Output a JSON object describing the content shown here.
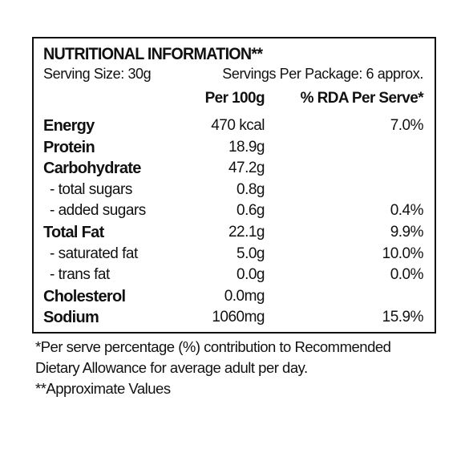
{
  "panel": {
    "title": "NUTRITIONAL INFORMATION**",
    "serving_size": "Serving Size: 30g",
    "servings_per_package": "Servings Per Package: 6 approx.",
    "headers": {
      "per_100g": "Per 100g",
      "rda_per_serve": "% RDA Per Serve*"
    },
    "rows": [
      {
        "name": "Energy",
        "per_100g": "470 kcal",
        "rda": "7.0%",
        "level": "main"
      },
      {
        "name": "Protein",
        "per_100g": "18.9g",
        "rda": "",
        "level": "main"
      },
      {
        "name": "Carbohydrate",
        "per_100g": "47.2g",
        "rda": "",
        "level": "main"
      },
      {
        "name": "- total sugars",
        "per_100g": "0.8g",
        "rda": "",
        "level": "sub"
      },
      {
        "name": "- added sugars",
        "per_100g": "0.6g",
        "rda": "0.4%",
        "level": "sub"
      },
      {
        "name": "Total Fat",
        "per_100g": "22.1g",
        "rda": "9.9%",
        "level": "main"
      },
      {
        "name": "- saturated fat",
        "per_100g": "5.0g",
        "rda": "10.0%",
        "level": "sub"
      },
      {
        "name": "- trans fat",
        "per_100g": "0.0g",
        "rda": "0.0%",
        "level": "sub"
      },
      {
        "name": "Cholesterol",
        "per_100g": "0.0mg",
        "rda": "",
        "level": "main"
      },
      {
        "name": "Sodium",
        "per_100g": "1060mg",
        "rda": "15.9%",
        "level": "main"
      }
    ]
  },
  "footer": {
    "note_line1": "*Per serve percentage (%) contribution to Recommended",
    "note_line2": "Dietary Allowance for average adult per day.",
    "note_line3": "**Approximate Values"
  }
}
